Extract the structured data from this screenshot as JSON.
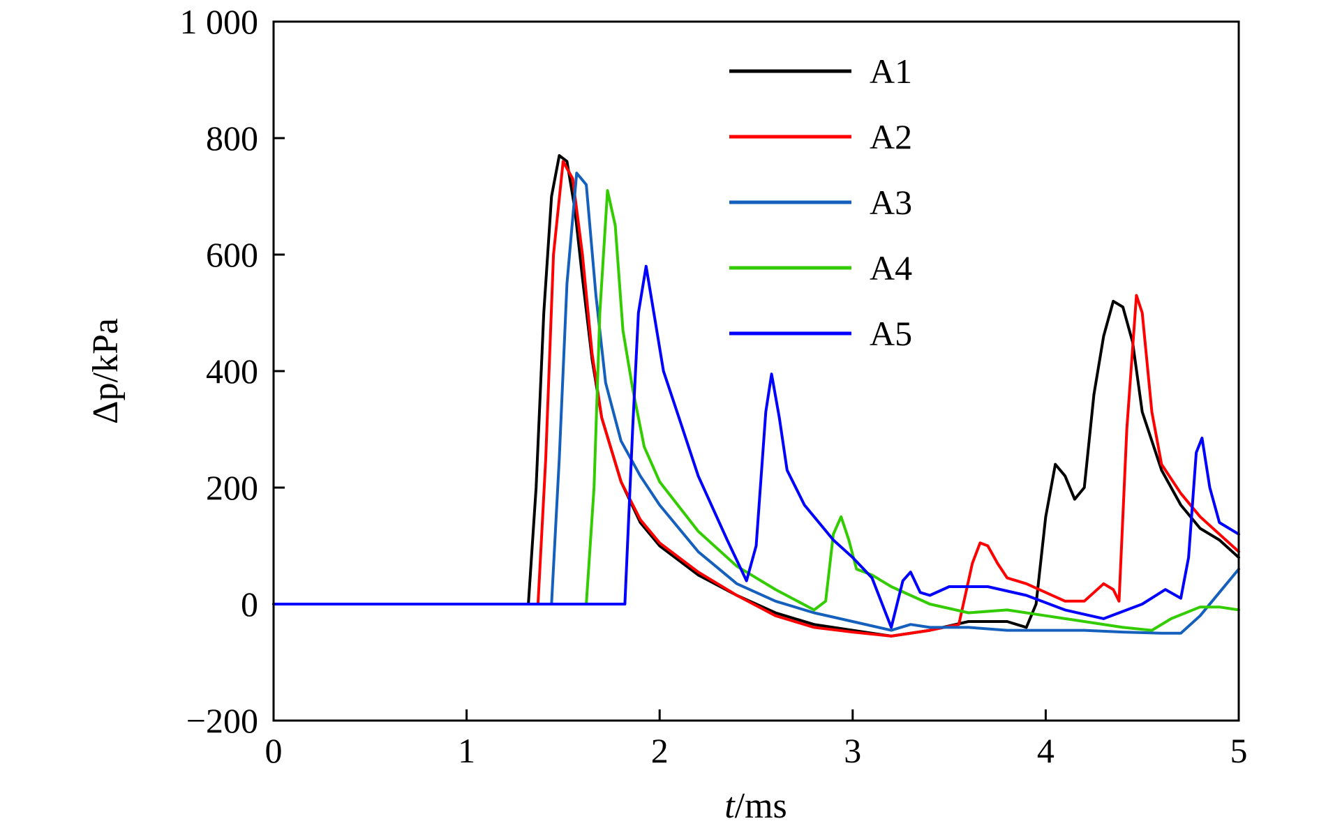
{
  "chart_data": {
    "type": "line",
    "title": "",
    "xlabel": {
      "var": "t",
      "unit": "/ms"
    },
    "ylabel": {
      "var": "Δp",
      "unit": "/kPa"
    },
    "xlim": [
      0,
      5
    ],
    "ylim": [
      -200,
      1000
    ],
    "xticks": [
      0,
      1,
      2,
      3,
      4,
      5
    ],
    "xtick_labels": [
      "0",
      "1",
      "2",
      "3",
      "4",
      "5"
    ],
    "yticks": [
      -200,
      0,
      200,
      400,
      600,
      800,
      1000
    ],
    "ytick_labels": [
      "−200",
      "0",
      "200",
      "400",
      "600",
      "800",
      "1 000"
    ],
    "grid": false,
    "legend_position": "top-right",
    "series": [
      {
        "name": "A1",
        "color": "#000000",
        "points": [
          [
            0,
            0
          ],
          [
            1.32,
            0
          ],
          [
            1.36,
            200
          ],
          [
            1.4,
            500
          ],
          [
            1.44,
            700
          ],
          [
            1.48,
            770
          ],
          [
            1.52,
            760
          ],
          [
            1.56,
            680
          ],
          [
            1.6,
            560
          ],
          [
            1.65,
            420
          ],
          [
            1.7,
            320
          ],
          [
            1.8,
            210
          ],
          [
            1.9,
            140
          ],
          [
            2.0,
            100
          ],
          [
            2.2,
            50
          ],
          [
            2.4,
            15
          ],
          [
            2.6,
            -15
          ],
          [
            2.8,
            -35
          ],
          [
            3.0,
            -45
          ],
          [
            3.2,
            -55
          ],
          [
            3.4,
            -45
          ],
          [
            3.6,
            -30
          ],
          [
            3.8,
            -30
          ],
          [
            3.9,
            -40
          ],
          [
            3.95,
            0
          ],
          [
            4.0,
            150
          ],
          [
            4.05,
            240
          ],
          [
            4.1,
            220
          ],
          [
            4.15,
            180
          ],
          [
            4.2,
            200
          ],
          [
            4.25,
            360
          ],
          [
            4.3,
            460
          ],
          [
            4.35,
            520
          ],
          [
            4.4,
            510
          ],
          [
            4.45,
            450
          ],
          [
            4.5,
            330
          ],
          [
            4.6,
            230
          ],
          [
            4.7,
            170
          ],
          [
            4.8,
            130
          ],
          [
            4.9,
            110
          ],
          [
            5.0,
            80
          ]
        ]
      },
      {
        "name": "A2",
        "color": "#ff0000",
        "points": [
          [
            0,
            0
          ],
          [
            1.37,
            0
          ],
          [
            1.41,
            250
          ],
          [
            1.45,
            600
          ],
          [
            1.5,
            760
          ],
          [
            1.55,
            730
          ],
          [
            1.6,
            600
          ],
          [
            1.65,
            430
          ],
          [
            1.7,
            320
          ],
          [
            1.8,
            210
          ],
          [
            1.9,
            145
          ],
          [
            2.0,
            105
          ],
          [
            2.2,
            55
          ],
          [
            2.4,
            15
          ],
          [
            2.6,
            -20
          ],
          [
            2.8,
            -40
          ],
          [
            3.0,
            -48
          ],
          [
            3.2,
            -55
          ],
          [
            3.4,
            -45
          ],
          [
            3.55,
            -35
          ],
          [
            3.62,
            70
          ],
          [
            3.66,
            105
          ],
          [
            3.7,
            100
          ],
          [
            3.75,
            70
          ],
          [
            3.8,
            45
          ],
          [
            3.9,
            35
          ],
          [
            4.0,
            20
          ],
          [
            4.1,
            5
          ],
          [
            4.2,
            5
          ],
          [
            4.3,
            35
          ],
          [
            4.35,
            25
          ],
          [
            4.38,
            5
          ],
          [
            4.42,
            300
          ],
          [
            4.47,
            530
          ],
          [
            4.5,
            500
          ],
          [
            4.55,
            330
          ],
          [
            4.6,
            240
          ],
          [
            4.7,
            190
          ],
          [
            4.8,
            150
          ],
          [
            4.9,
            120
          ],
          [
            5.0,
            90
          ]
        ]
      },
      {
        "name": "A3",
        "color": "#1560bd",
        "points": [
          [
            0,
            0
          ],
          [
            1.44,
            0
          ],
          [
            1.48,
            250
          ],
          [
            1.52,
            550
          ],
          [
            1.57,
            740
          ],
          [
            1.62,
            720
          ],
          [
            1.67,
            530
          ],
          [
            1.72,
            380
          ],
          [
            1.8,
            280
          ],
          [
            1.9,
            220
          ],
          [
            2.0,
            170
          ],
          [
            2.2,
            90
          ],
          [
            2.4,
            35
          ],
          [
            2.6,
            5
          ],
          [
            2.8,
            -15
          ],
          [
            3.0,
            -30
          ],
          [
            3.2,
            -45
          ],
          [
            3.3,
            -35
          ],
          [
            3.4,
            -40
          ],
          [
            3.6,
            -40
          ],
          [
            3.8,
            -45
          ],
          [
            4.0,
            -45
          ],
          [
            4.2,
            -45
          ],
          [
            4.4,
            -48
          ],
          [
            4.6,
            -50
          ],
          [
            4.7,
            -50
          ],
          [
            4.8,
            -20
          ],
          [
            4.9,
            20
          ],
          [
            5.0,
            60
          ]
        ]
      },
      {
        "name": "A4",
        "color": "#33cc00",
        "points": [
          [
            0,
            0
          ],
          [
            1.62,
            0
          ],
          [
            1.66,
            200
          ],
          [
            1.69,
            500
          ],
          [
            1.73,
            710
          ],
          [
            1.77,
            650
          ],
          [
            1.81,
            470
          ],
          [
            1.86,
            370
          ],
          [
            1.92,
            270
          ],
          [
            2.0,
            210
          ],
          [
            2.2,
            125
          ],
          [
            2.4,
            65
          ],
          [
            2.6,
            25
          ],
          [
            2.8,
            -10
          ],
          [
            2.86,
            5
          ],
          [
            2.9,
            120
          ],
          [
            2.94,
            150
          ],
          [
            2.98,
            110
          ],
          [
            3.02,
            60
          ],
          [
            3.1,
            50
          ],
          [
            3.2,
            30
          ],
          [
            3.3,
            15
          ],
          [
            3.4,
            0
          ],
          [
            3.6,
            -15
          ],
          [
            3.8,
            -10
          ],
          [
            4.0,
            -20
          ],
          [
            4.2,
            -30
          ],
          [
            4.4,
            -40
          ],
          [
            4.55,
            -45
          ],
          [
            4.65,
            -25
          ],
          [
            4.8,
            -5
          ],
          [
            4.9,
            -5
          ],
          [
            5.0,
            -10
          ]
        ]
      },
      {
        "name": "A5",
        "color": "#0000ff",
        "points": [
          [
            0,
            0
          ],
          [
            1.82,
            0
          ],
          [
            1.86,
            300
          ],
          [
            1.89,
            500
          ],
          [
            1.93,
            580
          ],
          [
            1.97,
            500
          ],
          [
            2.02,
            400
          ],
          [
            2.1,
            320
          ],
          [
            2.2,
            220
          ],
          [
            2.35,
            110
          ],
          [
            2.45,
            40
          ],
          [
            2.5,
            100
          ],
          [
            2.55,
            330
          ],
          [
            2.58,
            395
          ],
          [
            2.62,
            320
          ],
          [
            2.66,
            230
          ],
          [
            2.75,
            170
          ],
          [
            2.9,
            110
          ],
          [
            3.0,
            80
          ],
          [
            3.1,
            45
          ],
          [
            3.2,
            -40
          ],
          [
            3.26,
            40
          ],
          [
            3.3,
            55
          ],
          [
            3.35,
            20
          ],
          [
            3.4,
            15
          ],
          [
            3.5,
            30
          ],
          [
            3.7,
            30
          ],
          [
            3.9,
            15
          ],
          [
            4.1,
            -10
          ],
          [
            4.3,
            -25
          ],
          [
            4.5,
            0
          ],
          [
            4.62,
            25
          ],
          [
            4.7,
            10
          ],
          [
            4.74,
            80
          ],
          [
            4.78,
            260
          ],
          [
            4.81,
            285
          ],
          [
            4.85,
            200
          ],
          [
            4.9,
            140
          ],
          [
            5.0,
            120
          ]
        ]
      }
    ]
  }
}
